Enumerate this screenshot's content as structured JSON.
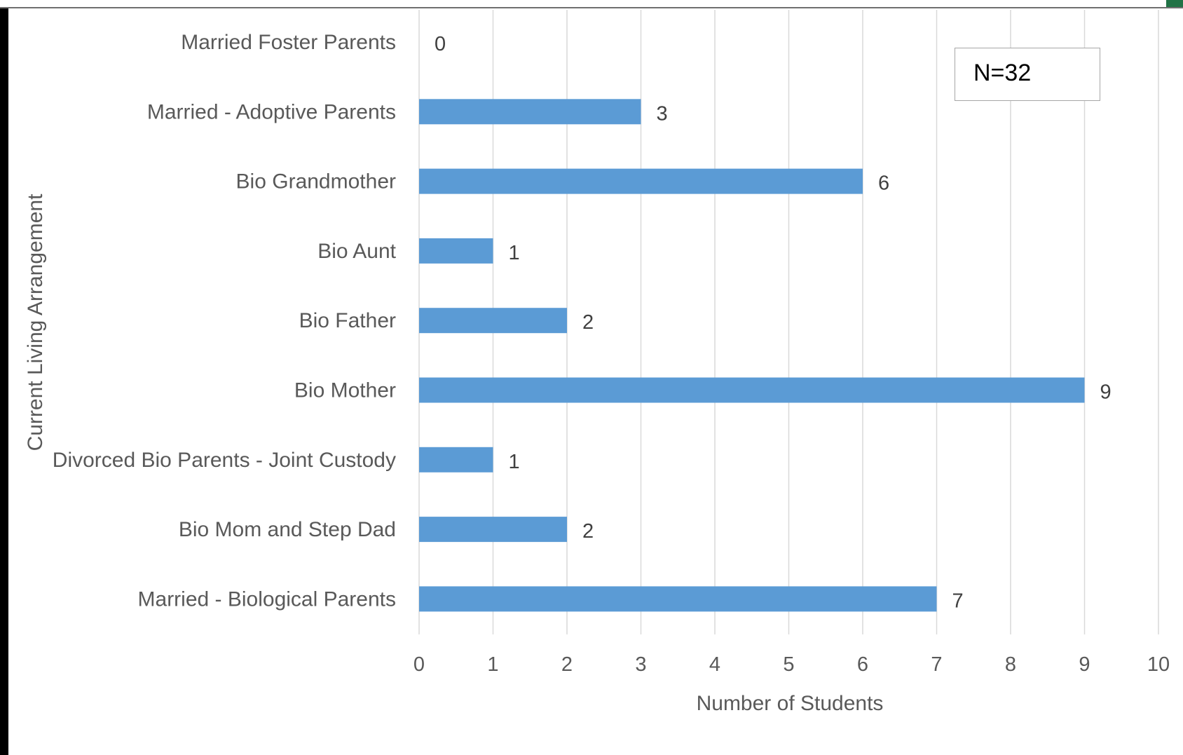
{
  "chart_data": {
    "type": "bar",
    "orientation": "horizontal",
    "categories": [
      "Married - Biological Parents",
      "Bio Mom and Step Dad",
      "Divorced Bio Parents - Joint Custody",
      "Bio Mother",
      "Bio Father",
      "Bio Aunt",
      "Bio Grandmother",
      "Married - Adoptive Parents",
      "Married Foster Parents"
    ],
    "values": [
      7,
      2,
      1,
      9,
      2,
      1,
      6,
      3,
      0
    ],
    "title": "",
    "xlabel": "Number of Students",
    "ylabel": "Current Living Arrangement",
    "xlim": [
      0,
      10
    ],
    "xticks": [
      "0",
      "1",
      "2",
      "3",
      "4",
      "5",
      "6",
      "7",
      "8",
      "9",
      "10"
    ],
    "grid": "vertical",
    "legend": "none",
    "data_labels": true,
    "annotation": "N=32",
    "bar_color": "#5b9bd5",
    "grid_color": "#d9d9d9"
  }
}
